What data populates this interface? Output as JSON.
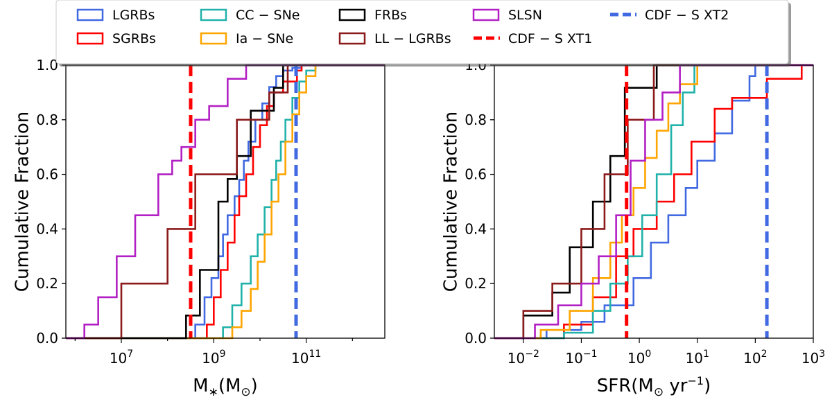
{
  "chart_data": [
    {
      "type": "line",
      "subtype": "cumulative-step",
      "xscale": "log",
      "xlabel": "M",
      "xlabel_sub": "∗",
      "xlabel_unit": "(M",
      "xlabel_unit_sub": "⊙",
      "xlabel_close": ")",
      "ylabel": "Cumulative Fraction",
      "xlim_log10": [
        5.8,
        12.7
      ],
      "ylim": [
        0.0,
        1.0
      ],
      "xticks_log10": [
        7,
        9,
        11
      ],
      "xtick_labels": [
        {
          "base": "10",
          "exp": "7"
        },
        {
          "base": "10",
          "exp": "9"
        },
        {
          "base": "10",
          "exp": "11"
        }
      ],
      "yticks": [
        "0.0",
        "0.2",
        "0.4",
        "0.6",
        "0.8",
        "1.0"
      ],
      "series": [
        {
          "name": "LGRBs",
          "color": "#4169e1",
          "x_log10": [
            8.6,
            8.8,
            8.95,
            9.1,
            9.2,
            9.3,
            9.45,
            9.55,
            9.65,
            9.75,
            9.9,
            10.05,
            10.2,
            10.35,
            10.5,
            10.7,
            10.9
          ],
          "y": [
            0.05,
            0.15,
            0.22,
            0.3,
            0.38,
            0.45,
            0.52,
            0.58,
            0.65,
            0.72,
            0.8,
            0.86,
            0.92,
            0.96,
            0.98,
            0.99,
            1.0
          ]
        },
        {
          "name": "SGRBs",
          "color": "#ff0000",
          "x_log10": [
            8.85,
            9.0,
            9.15,
            9.3,
            9.45,
            9.55,
            9.7,
            9.85,
            10.0,
            10.15,
            10.3,
            10.5,
            10.8,
            10.9
          ],
          "y": [
            0.05,
            0.15,
            0.25,
            0.35,
            0.45,
            0.52,
            0.6,
            0.7,
            0.78,
            0.85,
            0.9,
            0.94,
            0.98,
            1.0
          ]
        },
        {
          "name": "CC-SNe",
          "color": "#20b2aa",
          "x_log10": [
            9.2,
            9.4,
            9.6,
            9.8,
            9.95,
            10.1,
            10.25,
            10.35,
            10.45,
            10.55,
            10.7,
            10.85,
            11.0,
            11.2
          ],
          "y": [
            0.04,
            0.12,
            0.2,
            0.3,
            0.38,
            0.48,
            0.58,
            0.65,
            0.72,
            0.8,
            0.88,
            0.94,
            0.98,
            1.0
          ]
        },
        {
          "name": "Ia-SNe",
          "color": "#ffa500",
          "x_log10": [
            9.4,
            9.6,
            9.8,
            9.95,
            10.1,
            10.25,
            10.4,
            10.55,
            10.7,
            10.85,
            11.0,
            11.2
          ],
          "y": [
            0.04,
            0.1,
            0.18,
            0.28,
            0.38,
            0.5,
            0.6,
            0.72,
            0.82,
            0.9,
            0.96,
            1.0
          ]
        },
        {
          "name": "FRBs",
          "color": "#000000",
          "x_log10": [
            8.4,
            8.7,
            9.1,
            9.3,
            9.5,
            9.8,
            10.3,
            10.5
          ],
          "y": [
            0.083,
            0.25,
            0.5,
            0.583,
            0.667,
            0.833,
            0.917,
            1.0
          ]
        },
        {
          "name": "LL-LGRBs",
          "color": "#8b1a1a",
          "x_log10": [
            7.0,
            8.0,
            8.6,
            9.5,
            10.2,
            10.6
          ],
          "y": [
            0.2,
            0.4,
            0.6,
            0.8,
            0.9,
            1.0
          ]
        },
        {
          "name": "SLSN",
          "color": "#b21fc4",
          "x_log10": [
            6.2,
            6.5,
            6.9,
            7.3,
            7.8,
            8.1,
            8.3,
            8.6,
            8.9,
            9.3,
            9.7
          ],
          "y": [
            0.05,
            0.15,
            0.3,
            0.45,
            0.6,
            0.65,
            0.7,
            0.8,
            0.85,
            0.95,
            1.0
          ]
        }
      ],
      "vlines": [
        {
          "name": "CDF-S XT1",
          "color": "#ff0000",
          "x_log10": 8.5
        },
        {
          "name": "CDF-S XT2",
          "color": "#4169e1",
          "x_log10": 10.78
        }
      ]
    },
    {
      "type": "line",
      "subtype": "cumulative-step",
      "xscale": "log",
      "xlabel": "SFR(M",
      "xlabel_unit_sub": "⊙",
      "xlabel_unit": " yr",
      "xlabel_sup": "−1",
      "xlabel_close": ")",
      "ylabel": "Cumulative Fraction",
      "xlim_log10": [
        -2.5,
        3.0
      ],
      "ylim": [
        0.0,
        1.0
      ],
      "xticks_log10": [
        -2,
        -1,
        0,
        1,
        2,
        3
      ],
      "xtick_labels": [
        {
          "base": "10",
          "exp": "−2"
        },
        {
          "base": "10",
          "exp": "−1"
        },
        {
          "base": "10",
          "exp": "0"
        },
        {
          "base": "10",
          "exp": "1"
        },
        {
          "base": "10",
          "exp": "2"
        },
        {
          "base": "10",
          "exp": "3"
        }
      ],
      "yticks": [
        "0.0",
        "0.2",
        "0.4",
        "0.6",
        "0.8",
        "1.0"
      ],
      "series": [
        {
          "name": "LGRBs",
          "color": "#4169e1",
          "x_log10": [
            -1.6,
            -1.0,
            -0.6,
            -0.1,
            0.2,
            0.5,
            0.8,
            1.0,
            1.3,
            1.6,
            1.9,
            2.0
          ],
          "y": [
            0.03,
            0.06,
            0.12,
            0.22,
            0.35,
            0.45,
            0.55,
            0.65,
            0.75,
            0.87,
            0.96,
            1.0
          ]
        },
        {
          "name": "SGRBs",
          "color": "#ff0000",
          "x_log10": [
            -1.3,
            -0.8,
            -0.4,
            -0.1,
            0.3,
            0.6,
            0.9,
            1.3,
            1.6,
            2.2,
            2.8
          ],
          "y": [
            0.05,
            0.15,
            0.3,
            0.4,
            0.5,
            0.6,
            0.72,
            0.84,
            0.88,
            0.95,
            1.0
          ]
        },
        {
          "name": "CC-SNe",
          "color": "#20b2aa",
          "x_log10": [
            -1.3,
            -0.8,
            -0.5,
            -0.2,
            0.05,
            0.3,
            0.55,
            0.75,
            0.95
          ],
          "y": [
            0.02,
            0.1,
            0.2,
            0.3,
            0.45,
            0.6,
            0.78,
            0.9,
            1.0
          ]
        },
        {
          "name": "Ia-SNe",
          "color": "#ffa500",
          "x_log10": [
            -1.7,
            -1.2,
            -0.8,
            -0.5,
            -0.3,
            -0.1,
            0.1,
            0.3,
            0.5,
            0.7,
            1.0
          ],
          "y": [
            0.03,
            0.1,
            0.22,
            0.35,
            0.45,
            0.55,
            0.66,
            0.76,
            0.86,
            0.93,
            1.0
          ]
        },
        {
          "name": "FRBs",
          "color": "#000000",
          "x_log10": [
            -2.0,
            -1.5,
            -1.2,
            -0.8,
            -0.5,
            -0.25,
            0.3,
            0.75
          ],
          "y": [
            0.083,
            0.167,
            0.333,
            0.5,
            0.667,
            0.917,
            1.0,
            1.0
          ]
        },
        {
          "name": "LL-LGRBs",
          "color": "#8b1a1a",
          "x_log10": [
            -2.0,
            -1.5,
            -1.0,
            -0.6,
            -0.2,
            0.25
          ],
          "y": [
            0.1,
            0.2,
            0.4,
            0.6,
            0.8,
            1.0
          ]
        },
        {
          "name": "SLSN",
          "color": "#b21fc4",
          "x_log10": [
            -1.8,
            -1.4,
            -1.0,
            -0.7,
            -0.4,
            -0.15,
            0.1,
            0.4,
            0.7
          ],
          "y": [
            0.05,
            0.12,
            0.2,
            0.3,
            0.45,
            0.65,
            0.8,
            0.9,
            1.0
          ]
        }
      ],
      "vlines": [
        {
          "name": "CDF-S XT1",
          "color": "#ff0000",
          "x_log10": -0.22
        },
        {
          "name": "CDF-S XT2",
          "color": "#4169e1",
          "x_log10": 2.2
        }
      ]
    }
  ],
  "legend": {
    "placement": "top-center",
    "entries": [
      {
        "label": "LGRBs",
        "color": "#4169e1",
        "style": "patch"
      },
      {
        "label": "SGRBs",
        "color": "#ff0000",
        "style": "patch"
      },
      {
        "label": "CC − SNe",
        "color": "#20b2aa",
        "style": "patch"
      },
      {
        "label": "Ia − SNe",
        "color": "#ffa500",
        "style": "patch"
      },
      {
        "label": "FRBs",
        "color": "#000000",
        "style": "patch"
      },
      {
        "label": "LL − LGRBs",
        "color": "#8b1a1a",
        "style": "patch"
      },
      {
        "label": "SLSN",
        "color": "#b21fc4",
        "style": "patch"
      },
      {
        "label": "CDF − S XT1",
        "color": "#ff0000",
        "style": "dashed"
      },
      {
        "label": "CDF − S XT2",
        "color": "#4169e1",
        "style": "dashed"
      }
    ]
  }
}
